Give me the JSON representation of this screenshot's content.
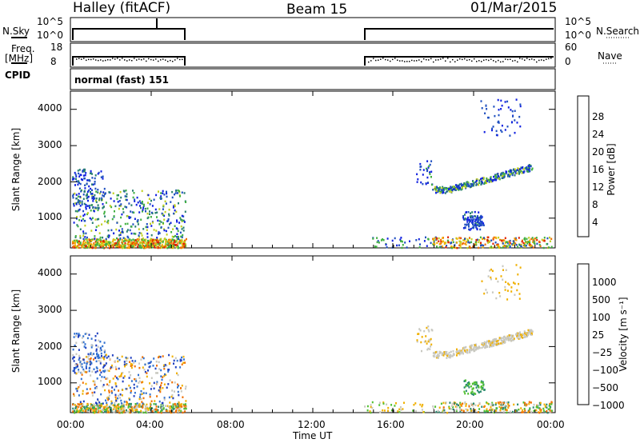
{
  "header": {
    "station": "Halley (fitACF)",
    "beam": "Beam 15",
    "date": "01/Mar/2015"
  },
  "strips": {
    "nsky": {
      "label": "N.Sky",
      "ticks": [
        "10^5",
        "10^0"
      ]
    },
    "nsearch": {
      "label": "N.Search",
      "ticks": [
        "10^5",
        "10^0"
      ]
    },
    "freq": {
      "label_line1": "Freq.",
      "label_line2": "[MHz]",
      "ticks": [
        "18",
        "8"
      ]
    },
    "nave": {
      "label": "Nave",
      "ticks": [
        "60",
        "0"
      ]
    },
    "cpid": {
      "label": "CPID",
      "value": "normal (fast) 151"
    }
  },
  "chart_data": [
    {
      "type": "heatmap",
      "title": "",
      "xlabel": "Time UT",
      "ylabel": "Slant Range [km]",
      "x_range": [
        "00:00",
        "24:00"
      ],
      "y_range": [
        180,
        4500
      ],
      "x_ticks": [
        "00:00",
        "04:00",
        "08:00",
        "12:00",
        "16:00",
        "20:00",
        "00:00"
      ],
      "y_ticks": [
        "1000",
        "2000",
        "3000",
        "4000"
      ],
      "colorbar": {
        "label": "Power [dB]",
        "range": [
          0,
          32
        ],
        "ticks": [
          "4",
          "8",
          "12",
          "16",
          "20",
          "24",
          "28"
        ],
        "colors": [
          "#1020e0",
          "#2050c0",
          "#2a8070",
          "#40b040",
          "#c0d020",
          "#f0b000",
          "#f07000",
          "#e02000"
        ]
      },
      "data_gaps_ut": [
        [
          "05:40",
          "14:40"
        ]
      ]
    },
    {
      "type": "heatmap",
      "title": "",
      "xlabel": "Time UT",
      "ylabel": "Slant Range [km]",
      "x_range": [
        "00:00",
        "24:00"
      ],
      "y_range": [
        180,
        4500
      ],
      "x_ticks": [
        "00:00",
        "04:00",
        "08:00",
        "12:00",
        "16:00",
        "20:00",
        "00:00"
      ],
      "y_ticks": [
        "1000",
        "2000",
        "3000",
        "4000"
      ],
      "colorbar": {
        "label": "Velocity [m s⁻¹]",
        "ticks": [
          "1000",
          "500",
          "100",
          "25",
          "−25",
          "−100",
          "−500",
          "−1000"
        ],
        "colors": [
          "#2040c0",
          "#3070d0",
          "#2a8a70",
          "#50c030",
          "#c8c8c0",
          "#f0b000",
          "#f07000",
          "#e02000"
        ]
      },
      "data_gaps_ut": [
        [
          "05:40",
          "14:40"
        ]
      ]
    }
  ],
  "colors": {
    "axis": "#000000",
    "background": "#ffffff"
  }
}
